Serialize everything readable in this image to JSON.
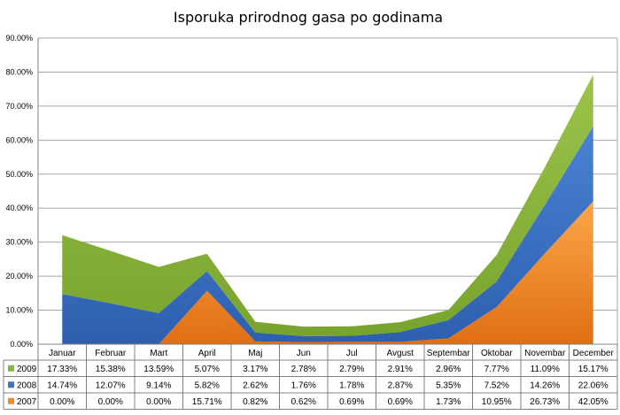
{
  "chart_data": {
    "type": "area",
    "stacked": true,
    "title": "Isporuka prirodnog gasa po godinama",
    "categories": [
      "Januar",
      "Februar",
      "Mart",
      "April",
      "Maj",
      "Jun",
      "Jul",
      "Avgust",
      "Septembar",
      "Oktobar",
      "Novembar",
      "December"
    ],
    "ylim": [
      0,
      90
    ],
    "y_tick_labels": [
      "0.00%",
      "10.00%",
      "20.00%",
      "30.00%",
      "40.00%",
      "50.00%",
      "60.00%",
      "70.00%",
      "80.00%",
      "90.00%"
    ],
    "grid": true,
    "legend": "data-table-left",
    "series": [
      {
        "name": "2007",
        "color": "#f28c2a",
        "values": [
          0.0,
          0.0,
          0.0,
          15.71,
          0.82,
          0.62,
          0.69,
          0.69,
          1.73,
          10.95,
          26.73,
          42.05
        ],
        "labels": [
          "0.00%",
          "0.00%",
          "0.00%",
          "15.71%",
          "0.82%",
          "0.62%",
          "0.69%",
          "0.69%",
          "1.73%",
          "10.95%",
          "26.73%",
          "42.05%"
        ]
      },
      {
        "name": "2008",
        "color": "#3f73c4",
        "values": [
          14.74,
          12.07,
          9.14,
          5.82,
          2.62,
          1.76,
          1.78,
          2.87,
          5.35,
          7.52,
          14.26,
          22.06
        ],
        "labels": [
          "14.74%",
          "12.07%",
          "9.14%",
          "5.82%",
          "2.62%",
          "1.76%",
          "1.78%",
          "2.87%",
          "5.35%",
          "7.52%",
          "14.26%",
          "22.06%"
        ]
      },
      {
        "name": "2009",
        "color": "#8ab43a",
        "values": [
          17.33,
          15.38,
          13.59,
          5.07,
          3.17,
          2.78,
          2.79,
          2.91,
          2.96,
          7.77,
          11.09,
          15.17
        ],
        "labels": [
          "17.33%",
          "15.38%",
          "13.59%",
          "5.07%",
          "3.17%",
          "2.78%",
          "2.79%",
          "2.91%",
          "2.96%",
          "7.77%",
          "11.09%",
          "15.17%"
        ]
      }
    ]
  }
}
